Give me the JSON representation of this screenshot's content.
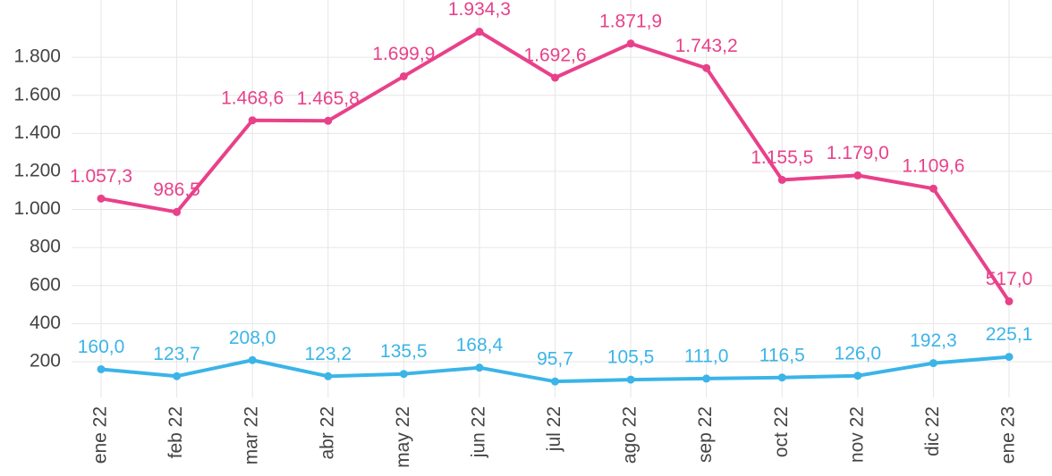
{
  "chart_data": {
    "type": "line",
    "categories": [
      "ene 22",
      "feb 22",
      "mar 22",
      "abr 22",
      "may 22",
      "jun 22",
      "jul 22",
      "ago 22",
      "sep 22",
      "oct 22",
      "nov 22",
      "dic 22",
      "ene 23"
    ],
    "series": [
      {
        "name": null,
        "color": "#e8418a",
        "values": [
          1057.3,
          986.5,
          1468.6,
          1465.8,
          1699.9,
          1934.3,
          1692.6,
          1871.9,
          1743.2,
          1155.5,
          1179.0,
          1109.6,
          517.0
        ],
        "value_labels": [
          "1.057,3",
          "986,5",
          "1.468,6",
          "1.465,8",
          "1.699,9",
          "1.934,3",
          "1.692,6",
          "1.871,9",
          "1.743,2",
          "1.155,5",
          "1.179,0",
          "1.109,6",
          "517,0"
        ]
      },
      {
        "name": null,
        "color": "#3bb4e8",
        "values": [
          160.0,
          123.7,
          208.0,
          123.2,
          135.5,
          168.4,
          95.7,
          105.5,
          111.0,
          116.5,
          126.0,
          192.3,
          225.1
        ],
        "value_labels": [
          "160,0",
          "123,7",
          "208,0",
          "123,2",
          "135,5",
          "168,4",
          "95,7",
          "105,5",
          "111,0",
          "116,5",
          "126,0",
          "192,3",
          "225,1"
        ]
      }
    ],
    "ylim": [
      12,
      2101
    ],
    "yticks": [
      200,
      400,
      600,
      800,
      {
        "value": 1000,
        "label": "1.000"
      },
      {
        "value": 1200,
        "label": "1.200"
      },
      {
        "value": 1400,
        "label": "1.400"
      },
      {
        "value": 1600,
        "label": "1.600"
      },
      {
        "value": 1800,
        "label": "1.800"
      }
    ],
    "grid": true
  }
}
